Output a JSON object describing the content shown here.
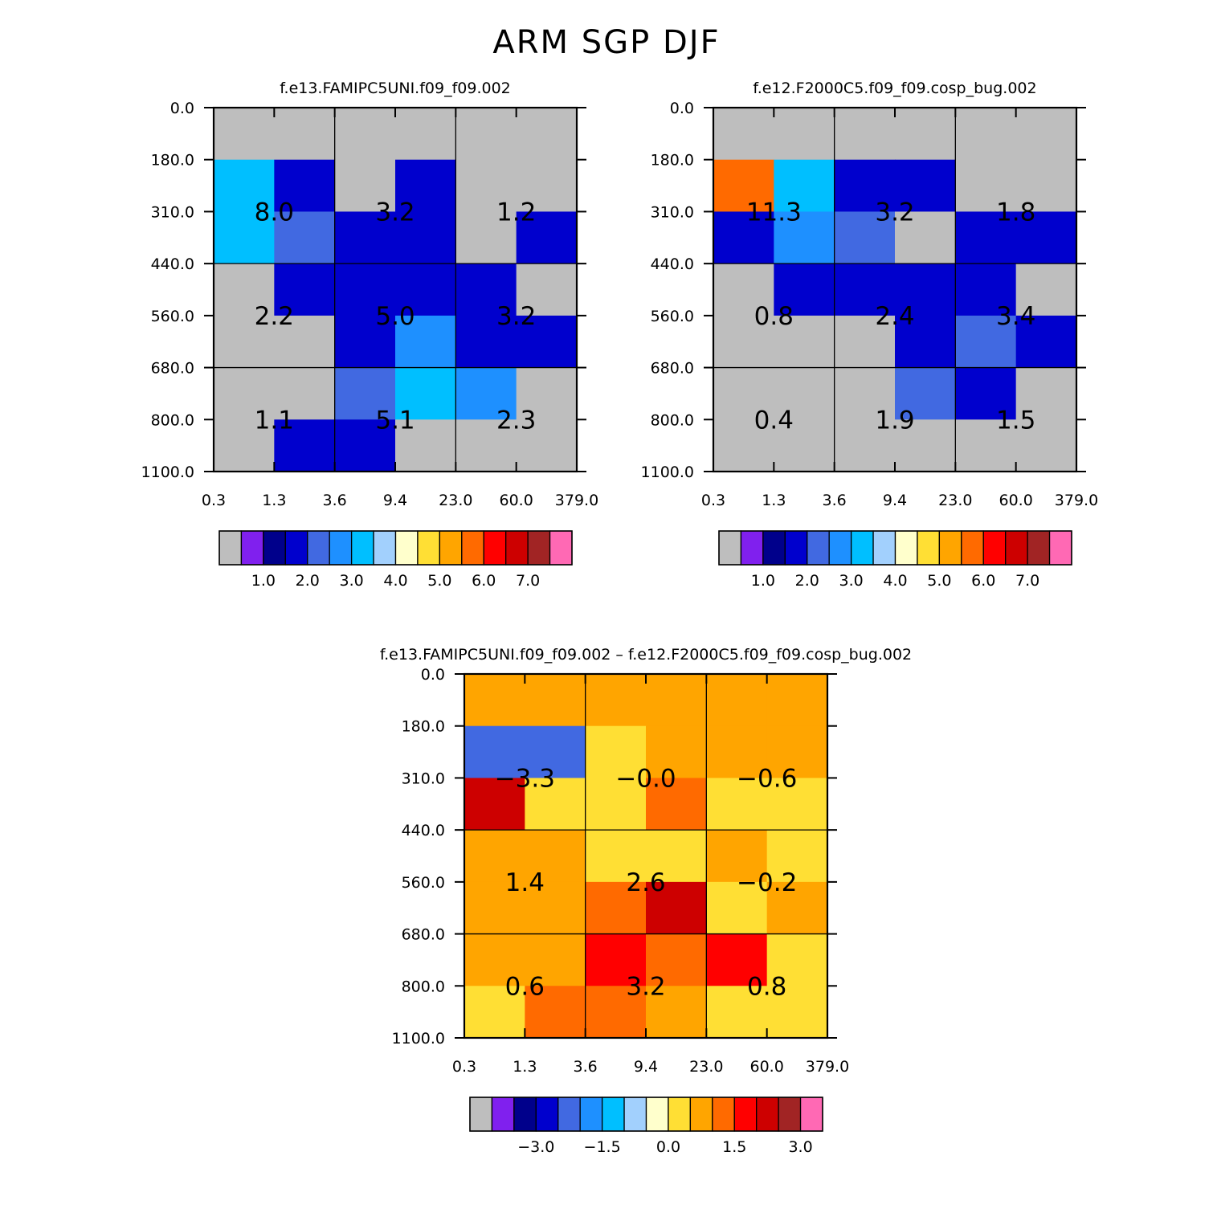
{
  "title": "ARM SGP DJF",
  "chart_data": [
    {
      "type": "heatmap",
      "title": "f.e13.FAMIPC5UNI.f09_f09.002",
      "xticks": [
        "0.3",
        "1.3",
        "3.6",
        "9.4",
        "23.0",
        "60.0",
        "379.0"
      ],
      "yticks": [
        "0.0",
        "180.0",
        "310.0",
        "440.0",
        "560.0",
        "680.0",
        "800.0",
        "1100.0"
      ],
      "cells": [
        [
          null,
          null,
          null,
          null,
          null,
          null
        ],
        [
          2.9,
          1.0,
          null,
          1.0,
          null,
          null
        ],
        [
          2.6,
          1.7,
          1.4,
          1.4,
          null,
          1.0
        ],
        [
          null,
          1.0,
          1.0,
          1.0,
          1.0,
          null
        ],
        [
          null,
          null,
          1.0,
          2.2,
          1.4,
          1.0
        ],
        [
          null,
          null,
          1.7,
          2.9,
          2.3,
          null
        ],
        [
          null,
          1.0,
          1.0,
          null,
          null,
          null
        ]
      ],
      "block_labels": [
        [
          "8.0",
          "3.2",
          "1.2"
        ],
        [
          "2.2",
          "5.0",
          "3.2"
        ],
        [
          "1.1",
          "5.1",
          "2.3"
        ]
      ],
      "colorbar_labels": [
        "1.0",
        "2.0",
        "3.0",
        "4.0",
        "5.0",
        "6.0",
        "7.0"
      ],
      "colorbar_boundaries": [
        0.5,
        1,
        1.5,
        2,
        2.5,
        3,
        3.5,
        4,
        4.5,
        5,
        5.5,
        6,
        6.5,
        7,
        7.5
      ]
    },
    {
      "type": "heatmap",
      "title": "f.e12.F2000C5.f09_f09.cosp_bug.002",
      "xticks": [
        "0.3",
        "1.3",
        "3.6",
        "9.4",
        "23.0",
        "60.0",
        "379.0"
      ],
      "yticks": [
        "0.0",
        "180.0",
        "310.0",
        "440.0",
        "560.0",
        "680.0",
        "800.0",
        "1100.0"
      ],
      "cells": [
        [
          null,
          null,
          null,
          null,
          null,
          null
        ],
        [
          5.2,
          2.9,
          1.0,
          1.0,
          null,
          null
        ],
        [
          1.0,
          2.3,
          1.7,
          null,
          1.4,
          1.0
        ],
        [
          null,
          1.0,
          1.0,
          1.0,
          1.0,
          null
        ],
        [
          null,
          null,
          null,
          1.0,
          1.7,
          1.0
        ],
        [
          null,
          null,
          null,
          1.7,
          1.4,
          null
        ],
        [
          null,
          null,
          null,
          null,
          null,
          null
        ]
      ],
      "block_labels": [
        [
          "11.3",
          "3.2",
          "1.8"
        ],
        [
          "0.8",
          "2.4",
          "3.4"
        ],
        [
          "0.4",
          "1.9",
          "1.5"
        ]
      ],
      "colorbar_labels": [
        "1.0",
        "2.0",
        "3.0",
        "4.0",
        "5.0",
        "6.0",
        "7.0"
      ],
      "colorbar_boundaries": [
        0.5,
        1,
        1.5,
        2,
        2.5,
        3,
        3.5,
        4,
        4.5,
        5,
        5.5,
        6,
        6.5,
        7,
        7.5
      ]
    },
    {
      "type": "heatmap",
      "title": "f.e13.FAMIPC5UNI.f09_f09.002 – f.e12.F2000C5.f09_f09.cosp_bug.002",
      "xticks": [
        "0.3",
        "1.3",
        "3.6",
        "9.4",
        "23.0",
        "60.0",
        "379.0"
      ],
      "yticks": [
        "0.0",
        "180.0",
        "310.0",
        "440.0",
        "560.0",
        "680.0",
        "800.0",
        "1100.0"
      ],
      "cells": [
        [
          0.0,
          0.0,
          0.0,
          0.0,
          0.0,
          0.0
        ],
        [
          -3.0,
          -3.0,
          -0.5,
          0.0,
          0.0,
          0.0
        ],
        [
          1.6,
          -0.5,
          -0.5,
          0.6,
          -0.5,
          -0.2
        ],
        [
          0.0,
          0.0,
          -0.2,
          -0.2,
          0.0,
          -0.2
        ],
        [
          0.0,
          0.0,
          0.6,
          1.6,
          -0.2,
          0.0
        ],
        [
          0.0,
          0.0,
          1.2,
          0.6,
          1.2,
          -0.2
        ],
        [
          -0.2,
          0.6,
          0.6,
          0.0,
          -0.2,
          -0.2
        ]
      ],
      "block_labels": [
        [
          "−3.3",
          "−0.0",
          "−0.6"
        ],
        [
          "1.4",
          "2.6",
          "−0.2"
        ],
        [
          "0.6",
          "3.2",
          "0.8"
        ]
      ],
      "colorbar_labels": [
        "−3.0",
        "−1.5",
        "0.0",
        "1.5",
        "3.0"
      ],
      "colorbar_boundaries": [
        -4.0,
        -3.5,
        -3.0,
        -2.5,
        -2.0,
        -1.5,
        -1.0,
        -0.5,
        0.0,
        0.5,
        1.0,
        1.5,
        2.0,
        2.5,
        3.0,
        3.5,
        4.0
      ]
    }
  ],
  "colors": {
    "missing": "#bebebe",
    "palette": [
      "#bebebe",
      "#8020ee",
      "#00008b",
      "#0000cd",
      "#4169e1",
      "#1e90ff",
      "#00bfff",
      "#a2d0fd",
      "#ffffcc",
      "#ffdf34",
      "#ffa500",
      "#ff6a00",
      "#ff0000",
      "#cd0000",
      "#a12424",
      "#ff69b4"
    ]
  }
}
